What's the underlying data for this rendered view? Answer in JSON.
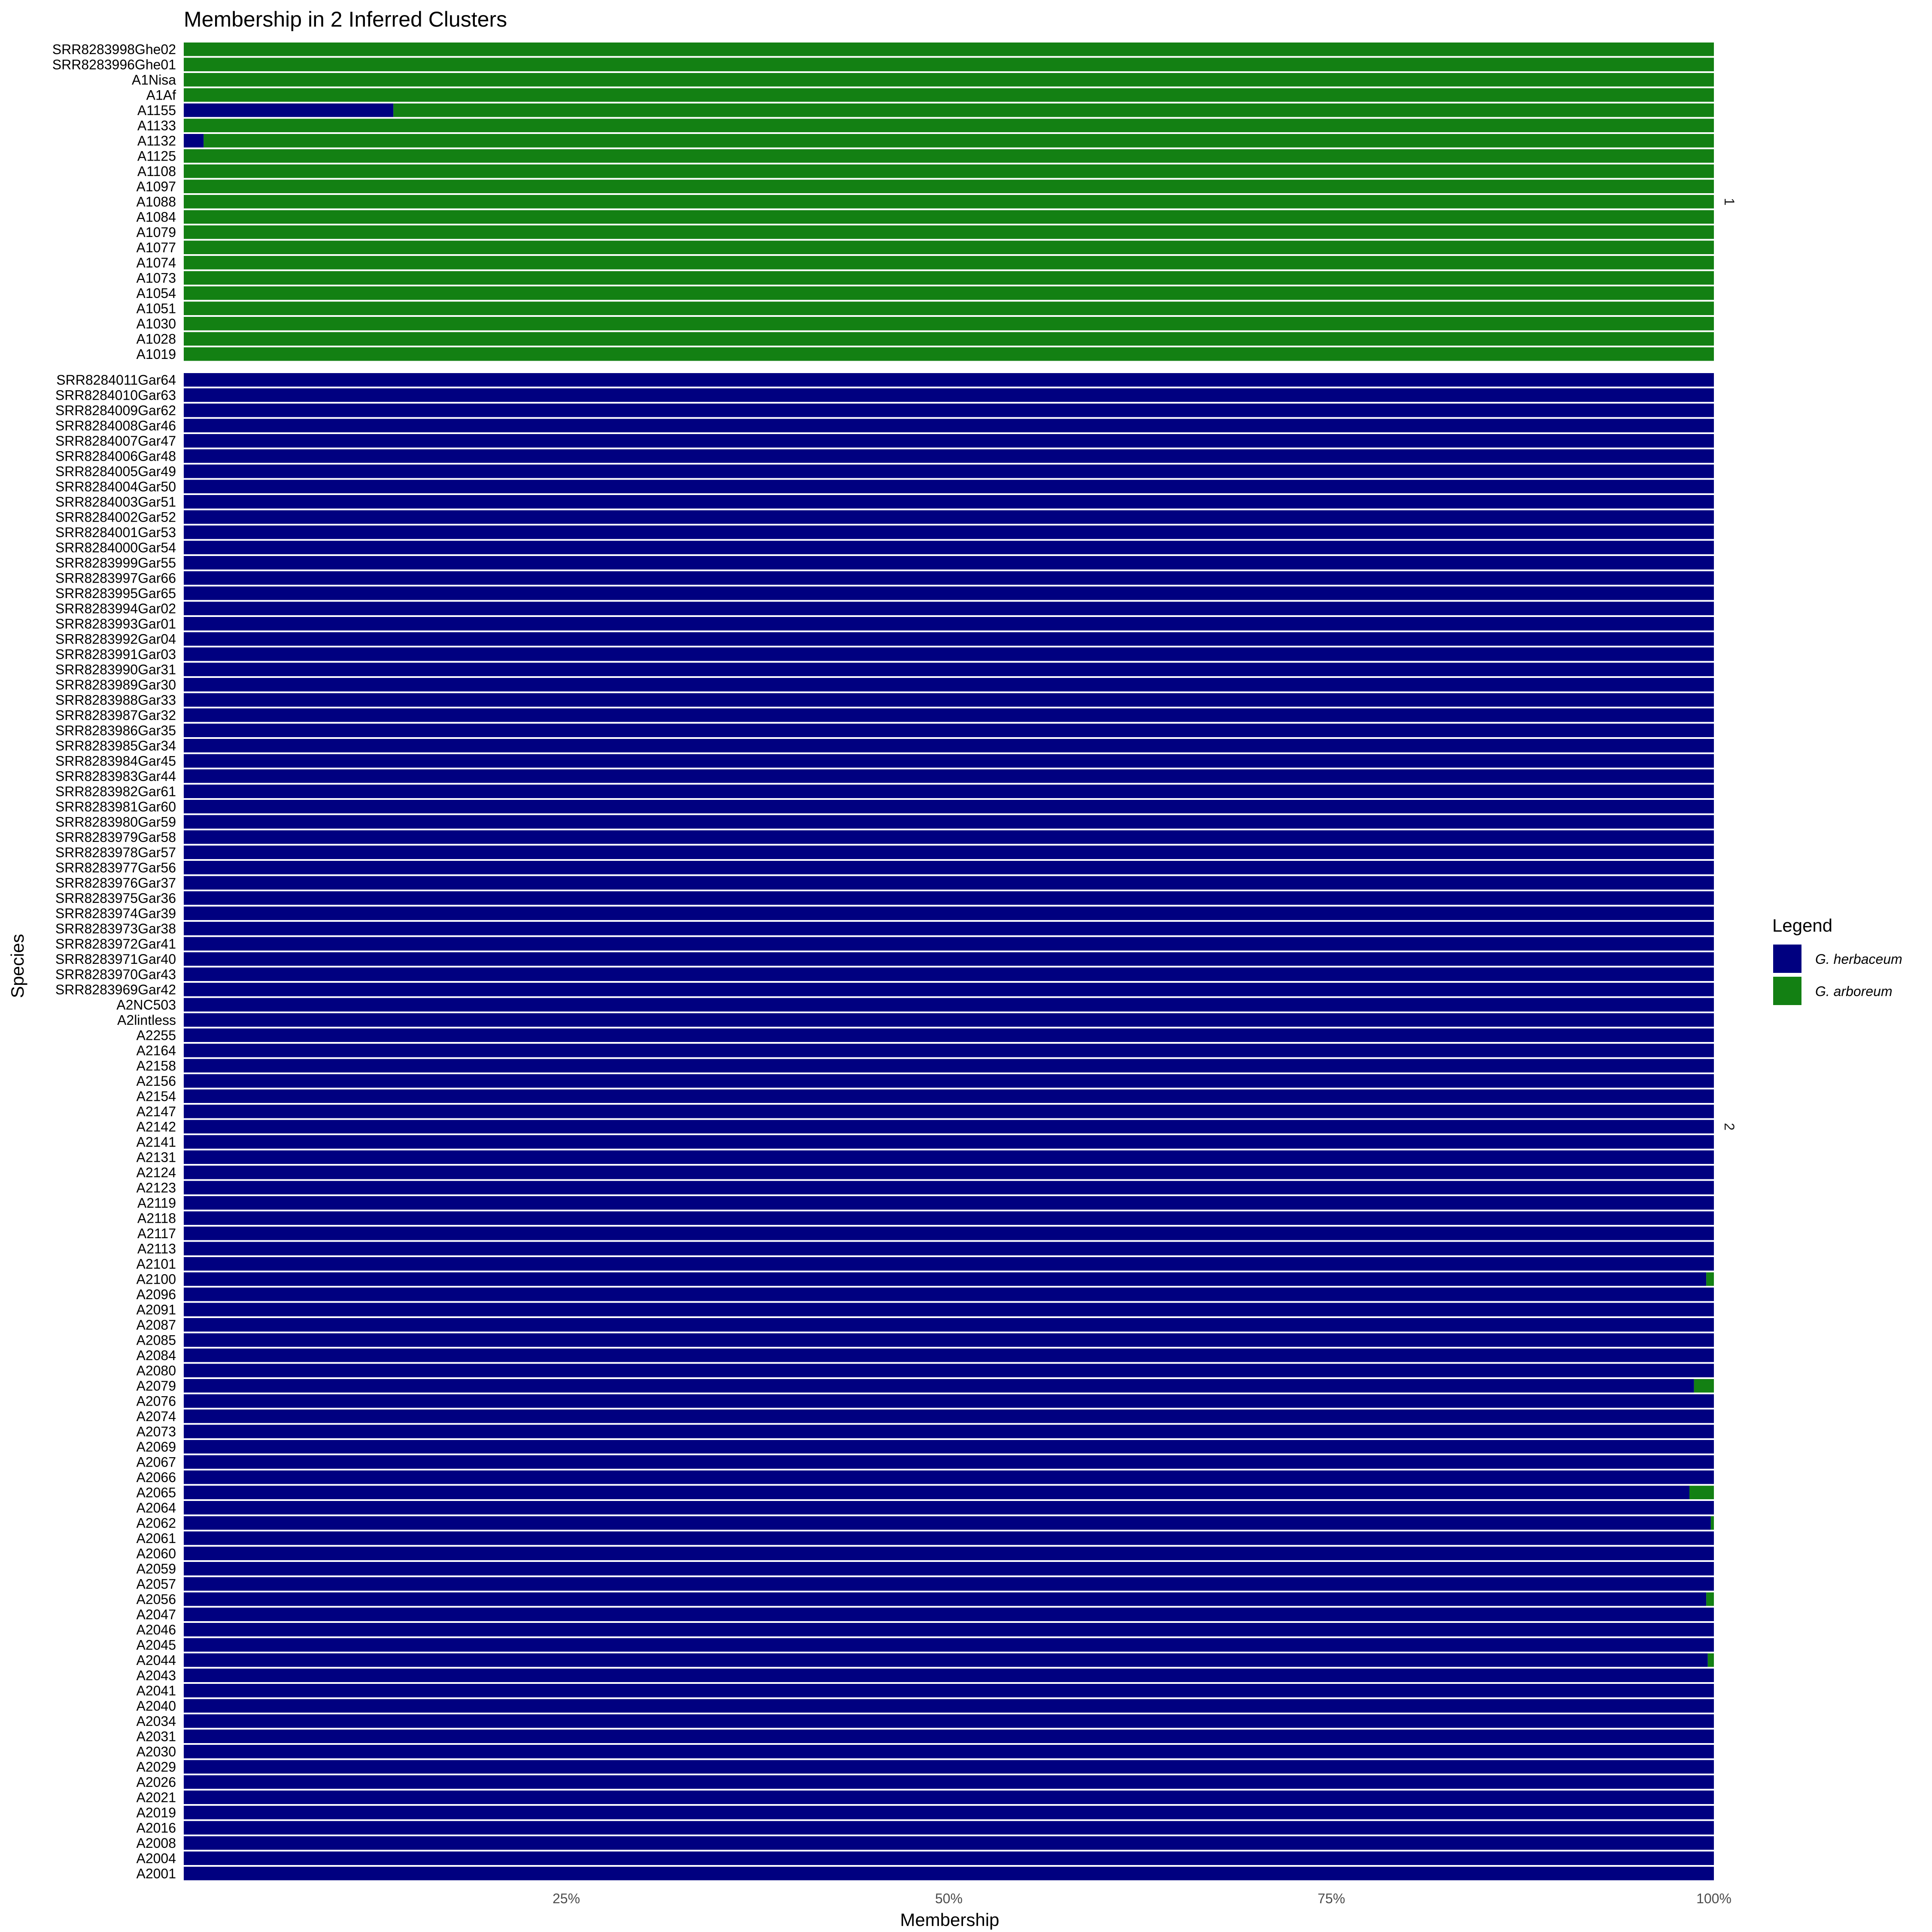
{
  "chart_data": {
    "type": "bar",
    "orientation": "horizontal",
    "stacked": true,
    "title": "Membership in 2 Inferred Clusters",
    "xlabel": "Membership",
    "ylabel": "Species",
    "xlim": [
      0,
      1
    ],
    "x_ticks": [
      "25%",
      "50%",
      "75%",
      "100%"
    ],
    "x_tick_values": [
      0.25,
      0.5,
      0.75,
      1.0
    ],
    "grid": false,
    "legend": {
      "title": "Legend",
      "placement": "right",
      "entries": [
        {
          "label": "G. herbaceum",
          "color": "#000080"
        },
        {
          "label": "G. arboreum",
          "color": "#138013"
        }
      ]
    },
    "panels": [
      {
        "strip_label": "1",
        "rows": [
          {
            "label": "SRR8283998Ghe02",
            "herbaceum": 0
          },
          {
            "label": "SRR8283996Ghe01",
            "herbaceum": 0
          },
          {
            "label": "A1Nisa",
            "herbaceum": 0
          },
          {
            "label": "A1Af",
            "herbaceum": 0
          },
          {
            "label": "A1155",
            "herbaceum": 0.137
          },
          {
            "label": "A1133",
            "herbaceum": 0
          },
          {
            "label": "A1132",
            "herbaceum": 0.013
          },
          {
            "label": "A1125",
            "herbaceum": 0
          },
          {
            "label": "A1108",
            "herbaceum": 0
          },
          {
            "label": "A1097",
            "herbaceum": 0
          },
          {
            "label": "A1088",
            "herbaceum": 0
          },
          {
            "label": "A1084",
            "herbaceum": 0
          },
          {
            "label": "A1079",
            "herbaceum": 0
          },
          {
            "label": "A1077",
            "herbaceum": 0
          },
          {
            "label": "A1074",
            "herbaceum": 0
          },
          {
            "label": "A1073",
            "herbaceum": 0
          },
          {
            "label": "A1054",
            "herbaceum": 0
          },
          {
            "label": "A1051",
            "herbaceum": 0
          },
          {
            "label": "A1030",
            "herbaceum": 0
          },
          {
            "label": "A1028",
            "herbaceum": 0
          },
          {
            "label": "A1019",
            "herbaceum": 0
          }
        ]
      },
      {
        "strip_label": "2",
        "rows": [
          {
            "label": "SRR8284011Gar64",
            "herbaceum": 1
          },
          {
            "label": "SRR8284010Gar63",
            "herbaceum": 1
          },
          {
            "label": "SRR8284009Gar62",
            "herbaceum": 1
          },
          {
            "label": "SRR8284008Gar46",
            "herbaceum": 1
          },
          {
            "label": "SRR8284007Gar47",
            "herbaceum": 1
          },
          {
            "label": "SRR8284006Gar48",
            "herbaceum": 1
          },
          {
            "label": "SRR8284005Gar49",
            "herbaceum": 1
          },
          {
            "label": "SRR8284004Gar50",
            "herbaceum": 1
          },
          {
            "label": "SRR8284003Gar51",
            "herbaceum": 1
          },
          {
            "label": "SRR8284002Gar52",
            "herbaceum": 1
          },
          {
            "label": "SRR8284001Gar53",
            "herbaceum": 1
          },
          {
            "label": "SRR8284000Gar54",
            "herbaceum": 1
          },
          {
            "label": "SRR8283999Gar55",
            "herbaceum": 1
          },
          {
            "label": "SRR8283997Gar66",
            "herbaceum": 1
          },
          {
            "label": "SRR8283995Gar65",
            "herbaceum": 1
          },
          {
            "label": "SRR8283994Gar02",
            "herbaceum": 1
          },
          {
            "label": "SRR8283993Gar01",
            "herbaceum": 1
          },
          {
            "label": "SRR8283992Gar04",
            "herbaceum": 1
          },
          {
            "label": "SRR8283991Gar03",
            "herbaceum": 1
          },
          {
            "label": "SRR8283990Gar31",
            "herbaceum": 1
          },
          {
            "label": "SRR8283989Gar30",
            "herbaceum": 1
          },
          {
            "label": "SRR8283988Gar33",
            "herbaceum": 1
          },
          {
            "label": "SRR8283987Gar32",
            "herbaceum": 1
          },
          {
            "label": "SRR8283986Gar35",
            "herbaceum": 1
          },
          {
            "label": "SRR8283985Gar34",
            "herbaceum": 1
          },
          {
            "label": "SRR8283984Gar45",
            "herbaceum": 1
          },
          {
            "label": "SRR8283983Gar44",
            "herbaceum": 1
          },
          {
            "label": "SRR8283982Gar61",
            "herbaceum": 1
          },
          {
            "label": "SRR8283981Gar60",
            "herbaceum": 1
          },
          {
            "label": "SRR8283980Gar59",
            "herbaceum": 1
          },
          {
            "label": "SRR8283979Gar58",
            "herbaceum": 1
          },
          {
            "label": "SRR8283978Gar57",
            "herbaceum": 1
          },
          {
            "label": "SRR8283977Gar56",
            "herbaceum": 1
          },
          {
            "label": "SRR8283976Gar37",
            "herbaceum": 1
          },
          {
            "label": "SRR8283975Gar36",
            "herbaceum": 1
          },
          {
            "label": "SRR8283974Gar39",
            "herbaceum": 1
          },
          {
            "label": "SRR8283973Gar38",
            "herbaceum": 1
          },
          {
            "label": "SRR8283972Gar41",
            "herbaceum": 1
          },
          {
            "label": "SRR8283971Gar40",
            "herbaceum": 1
          },
          {
            "label": "SRR8283970Gar43",
            "herbaceum": 1
          },
          {
            "label": "SRR8283969Gar42",
            "herbaceum": 1
          },
          {
            "label": "A2NC503",
            "herbaceum": 1
          },
          {
            "label": "A2lintless",
            "herbaceum": 1
          },
          {
            "label": "A2255",
            "herbaceum": 1
          },
          {
            "label": "A2164",
            "herbaceum": 1
          },
          {
            "label": "A2158",
            "herbaceum": 1
          },
          {
            "label": "A2156",
            "herbaceum": 1
          },
          {
            "label": "A2154",
            "herbaceum": 1
          },
          {
            "label": "A2147",
            "herbaceum": 1
          },
          {
            "label": "A2142",
            "herbaceum": 1
          },
          {
            "label": "A2141",
            "herbaceum": 1
          },
          {
            "label": "A2131",
            "herbaceum": 1
          },
          {
            "label": "A2124",
            "herbaceum": 1
          },
          {
            "label": "A2123",
            "herbaceum": 1
          },
          {
            "label": "A2119",
            "herbaceum": 1
          },
          {
            "label": "A2118",
            "herbaceum": 1
          },
          {
            "label": "A2117",
            "herbaceum": 1
          },
          {
            "label": "A2113",
            "herbaceum": 1
          },
          {
            "label": "A2101",
            "herbaceum": 1
          },
          {
            "label": "A2100",
            "herbaceum": 0.995
          },
          {
            "label": "A2096",
            "herbaceum": 1
          },
          {
            "label": "A2091",
            "herbaceum": 1
          },
          {
            "label": "A2087",
            "herbaceum": 1
          },
          {
            "label": "A2085",
            "herbaceum": 1
          },
          {
            "label": "A2084",
            "herbaceum": 1
          },
          {
            "label": "A2080",
            "herbaceum": 1
          },
          {
            "label": "A2079",
            "herbaceum": 0.987
          },
          {
            "label": "A2076",
            "herbaceum": 1
          },
          {
            "label": "A2074",
            "herbaceum": 1
          },
          {
            "label": "A2073",
            "herbaceum": 1
          },
          {
            "label": "A2069",
            "herbaceum": 1
          },
          {
            "label": "A2067",
            "herbaceum": 1
          },
          {
            "label": "A2066",
            "herbaceum": 1
          },
          {
            "label": "A2065",
            "herbaceum": 0.984
          },
          {
            "label": "A2064",
            "herbaceum": 1
          },
          {
            "label": "A2062",
            "herbaceum": 0.998
          },
          {
            "label": "A2061",
            "herbaceum": 1
          },
          {
            "label": "A2060",
            "herbaceum": 1
          },
          {
            "label": "A2059",
            "herbaceum": 1
          },
          {
            "label": "A2057",
            "herbaceum": 1
          },
          {
            "label": "A2056",
            "herbaceum": 0.995
          },
          {
            "label": "A2047",
            "herbaceum": 1
          },
          {
            "label": "A2046",
            "herbaceum": 1
          },
          {
            "label": "A2045",
            "herbaceum": 1
          },
          {
            "label": "A2044",
            "herbaceum": 0.996
          },
          {
            "label": "A2043",
            "herbaceum": 1
          },
          {
            "label": "A2041",
            "herbaceum": 1
          },
          {
            "label": "A2040",
            "herbaceum": 1
          },
          {
            "label": "A2034",
            "herbaceum": 1
          },
          {
            "label": "A2031",
            "herbaceum": 1
          },
          {
            "label": "A2030",
            "herbaceum": 1
          },
          {
            "label": "A2029",
            "herbaceum": 1
          },
          {
            "label": "A2026",
            "herbaceum": 1
          },
          {
            "label": "A2021",
            "herbaceum": 1
          },
          {
            "label": "A2019",
            "herbaceum": 1
          },
          {
            "label": "A2016",
            "herbaceum": 1
          },
          {
            "label": "A2008",
            "herbaceum": 1
          },
          {
            "label": "A2004",
            "herbaceum": 1
          },
          {
            "label": "A2001",
            "herbaceum": 1
          }
        ]
      }
    ]
  }
}
